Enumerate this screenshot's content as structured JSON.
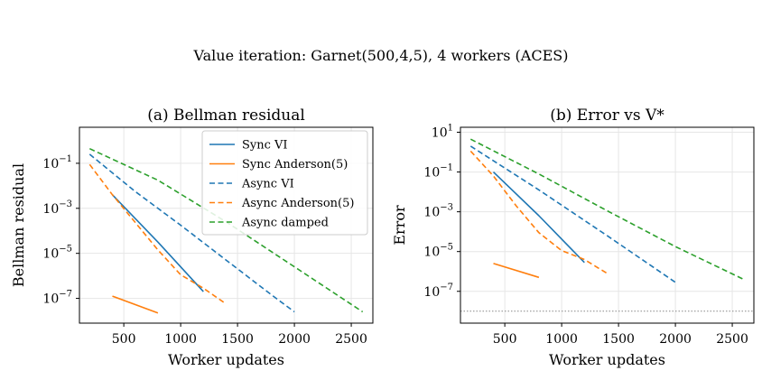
{
  "suptitle": "Value iteration: Garnet(500,4,5), 4 workers (ACES)",
  "chart_data": [
    {
      "type": "line",
      "title": "(a) Bellman residual",
      "xlabel": "Worker updates",
      "ylabel": "Bellman residual",
      "yscale": "log",
      "xlim": [
        110,
        2690
      ],
      "ylim_exp": [
        -8.1,
        0.6
      ],
      "xticks": [
        500,
        1000,
        1500,
        2000,
        2500
      ],
      "xtick_labels": [
        "500",
        "1000",
        "1500",
        "2000",
        "2500"
      ],
      "yticks_exp": [
        -1,
        -3,
        -5,
        -7
      ],
      "ytick_labels": [
        "10",
        "10",
        "10",
        "10"
      ],
      "ytick_sups": [
        "−1",
        "−3",
        "−5",
        "−7"
      ],
      "grid": true,
      "legend": "top-right",
      "series": [
        {
          "name": "Sync VI",
          "color": "#1f77b4",
          "dash": false,
          "x": [
            400,
            800,
            1200
          ],
          "log10y": [
            -2.4,
            -4.5,
            -6.7
          ]
        },
        {
          "name": "Sync Anderson(5)",
          "color": "#ff7f0e",
          "dash": false,
          "x": [
            400,
            800
          ],
          "log10y": [
            -6.9,
            -7.65
          ]
        },
        {
          "name": "Async VI",
          "color": "#1f77b4",
          "dash": true,
          "x": [
            200,
            600,
            1000,
            1400,
            1800,
            2000
          ],
          "log10y": [
            -0.6,
            -2.25,
            -3.75,
            -5.3,
            -6.85,
            -7.6
          ]
        },
        {
          "name": "Async Anderson(5)",
          "color": "#ff7f0e",
          "dash": true,
          "x": [
            200,
            400,
            800,
            1000,
            1200,
            1400
          ],
          "log10y": [
            -1.05,
            -2.4,
            -4.85,
            -5.95,
            -6.55,
            -7.25
          ]
        },
        {
          "name": "Async damped",
          "color": "#2ca02c",
          "dash": true,
          "x": [
            200,
            800,
            1400,
            2000,
            2600
          ],
          "log10y": [
            -0.35,
            -1.75,
            -3.6,
            -5.6,
            -7.6
          ]
        }
      ]
    },
    {
      "type": "line",
      "title": "(b) Error vs V*",
      "xlabel": "Worker updates",
      "ylabel": "Error",
      "yscale": "log",
      "xlim": [
        110,
        2690
      ],
      "ylim_exp": [
        -8.6,
        1.25
      ],
      "xticks": [
        500,
        1000,
        1500,
        2000,
        2500
      ],
      "xtick_labels": [
        "500",
        "1000",
        "1500",
        "2000",
        "2500"
      ],
      "yticks_exp": [
        1,
        -1,
        -3,
        -5,
        -7
      ],
      "ytick_labels": [
        "10",
        "10",
        "10",
        "10",
        "10"
      ],
      "ytick_sups": [
        "1",
        "−1",
        "−3",
        "−5",
        "−7"
      ],
      "grid": true,
      "reference_line_log10y": -8.0,
      "series": [
        {
          "name": "Sync VI",
          "color": "#1f77b4",
          "dash": false,
          "x": [
            400,
            800,
            1200
          ],
          "log10y": [
            -1.0,
            -3.2,
            -5.55
          ]
        },
        {
          "name": "Sync Anderson(5)",
          "color": "#ff7f0e",
          "dash": false,
          "x": [
            400,
            800
          ],
          "log10y": [
            -5.6,
            -6.3
          ]
        },
        {
          "name": "Async VI",
          "color": "#1f77b4",
          "dash": true,
          "x": [
            200,
            800,
            1400,
            2000
          ],
          "log10y": [
            0.3,
            -1.9,
            -4.2,
            -6.55
          ]
        },
        {
          "name": "Async Anderson(5)",
          "color": "#ff7f0e",
          "dash": true,
          "x": [
            200,
            400,
            600,
            800,
            1000,
            1200,
            1400
          ],
          "log10y": [
            0.05,
            -1.2,
            -2.7,
            -4.05,
            -4.95,
            -5.4,
            -6.1
          ]
        },
        {
          "name": "Async damped",
          "color": "#2ca02c",
          "dash": true,
          "x": [
            200,
            800,
            1400,
            2000,
            2600
          ],
          "log10y": [
            0.65,
            -1.1,
            -2.95,
            -4.75,
            -6.4
          ]
        }
      ]
    }
  ]
}
